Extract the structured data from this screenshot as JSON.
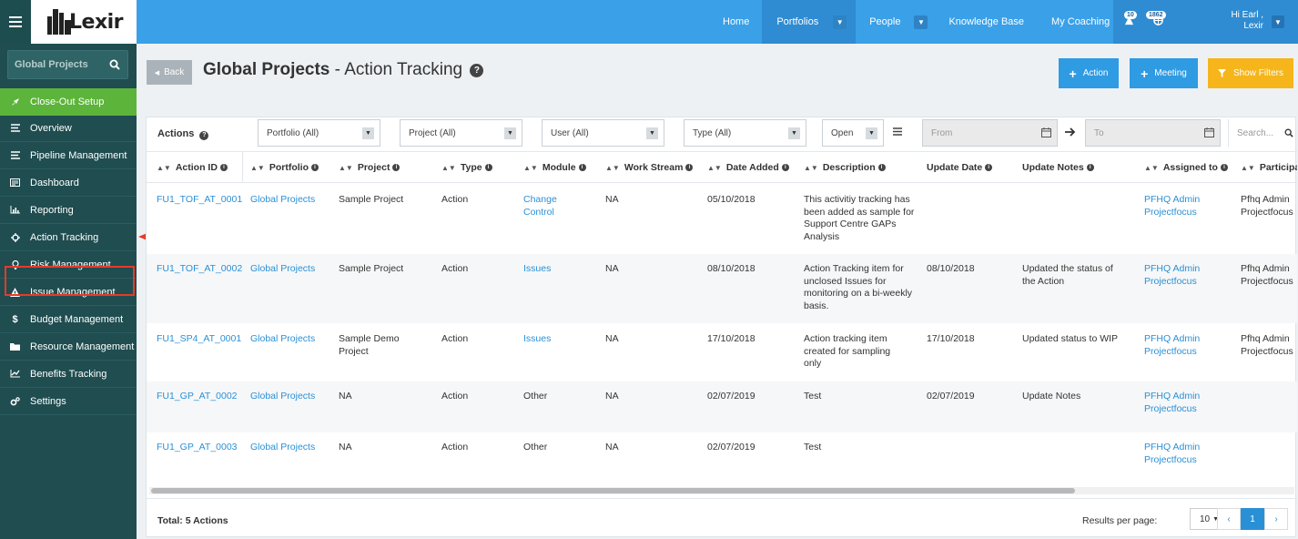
{
  "app": {
    "logo_text": "Lexir"
  },
  "topnav": {
    "home": "Home",
    "portfolios": "Portfolios",
    "people": "People",
    "knowledge_base": "Knowledge Base",
    "my_coaching": "My Coaching",
    "alerts_count": "10",
    "notifications_count": "1862",
    "greeting": "Hi Earl ,",
    "user_name": "Lexir"
  },
  "sidebar": {
    "search_label": "Global Projects",
    "items": [
      {
        "label": "Close-Out Setup",
        "icon": "rocket-icon"
      },
      {
        "label": "Overview",
        "icon": "list-icon"
      },
      {
        "label": "Pipeline Management",
        "icon": "list-icon"
      },
      {
        "label": "Dashboard",
        "icon": "dashboard-icon"
      },
      {
        "label": "Reporting",
        "icon": "bar-chart-icon"
      },
      {
        "label": "Action Tracking",
        "icon": "crosshair-icon"
      },
      {
        "label": "Risk Management",
        "icon": "lightbulb-icon"
      },
      {
        "label": "Issue Management",
        "icon": "warning-icon"
      },
      {
        "label": "Budget Management",
        "icon": "dollar-icon"
      },
      {
        "label": "Resource Management",
        "icon": "folder-icon"
      },
      {
        "label": "Benefits Tracking",
        "icon": "line-chart-icon"
      },
      {
        "label": "Settings",
        "icon": "cogs-icon"
      }
    ]
  },
  "header": {
    "back_label": "Back",
    "title_bold": "Global Projects",
    "title_rest": " - Action Tracking",
    "action_button": "Action",
    "meeting_button": "Meeting",
    "show_filters_button": "Show Filters"
  },
  "filters": {
    "actions_label": "Actions",
    "portfolio": "Portfolio (All)",
    "project": "Project (All)",
    "user": "User (All)",
    "type": "Type (All)",
    "status": "Open",
    "from_placeholder": "From",
    "to_placeholder": "To",
    "search_placeholder": "Search..."
  },
  "table": {
    "columns": [
      "Action ID",
      "Portfolio",
      "Project",
      "Type",
      "Module",
      "Work Stream",
      "Date Added",
      "Description",
      "Update Date",
      "Update Notes",
      "Assigned to",
      "Participar"
    ],
    "rows": [
      {
        "id": "FU1_TOF_AT_0001",
        "portfolio": "Global Projects",
        "project": "Sample Project",
        "type": "Action",
        "module": "Change Control",
        "work_stream": "NA",
        "date_added": "05/10/2018",
        "description": "This activitiy tracking has been added as sample for Support Centre GAPs Analysis",
        "update_date": "",
        "update_notes": "",
        "assigned_to": "PFHQ Admin Projectfocus",
        "participants": "Pfhq Admin Projectfocus"
      },
      {
        "id": "FU1_TOF_AT_0002",
        "portfolio": "Global Projects",
        "project": "Sample Project",
        "type": "Action",
        "module": "Issues",
        "work_stream": "NA",
        "date_added": "08/10/2018",
        "description": "Action Tracking item for unclosed Issues for monitoring on a bi-weekly basis.",
        "update_date": "08/10/2018",
        "update_notes": "Updated the status of the Action",
        "assigned_to": "PFHQ Admin Projectfocus",
        "participants": "Pfhq Admin Projectfocus"
      },
      {
        "id": "FU1_SP4_AT_0001",
        "portfolio": "Global Projects",
        "project": "Sample Demo Project",
        "type": "Action",
        "module": "Issues",
        "work_stream": "NA",
        "date_added": "17/10/2018",
        "description": "Action tracking item created for sampling only",
        "update_date": "17/10/2018",
        "update_notes": "Updated status to WIP",
        "assigned_to": "PFHQ Admin Projectfocus",
        "participants": "Pfhq Admin Projectfocus"
      },
      {
        "id": "FU1_GP_AT_0002",
        "portfolio": "Global Projects",
        "project": "NA",
        "type": "Action",
        "module": "Other",
        "work_stream": "NA",
        "date_added": "02/07/2019",
        "description": "Test",
        "update_date": "02/07/2019",
        "update_notes": "Update Notes",
        "assigned_to": "PFHQ Admin Projectfocus",
        "participants": ""
      },
      {
        "id": "FU1_GP_AT_0003",
        "portfolio": "Global Projects",
        "project": "NA",
        "type": "Action",
        "module": "Other",
        "work_stream": "NA",
        "date_added": "02/07/2019",
        "description": "Test",
        "update_date": "",
        "update_notes": "",
        "assigned_to": "PFHQ Admin Projectfocus",
        "participants": ""
      }
    ]
  },
  "footer": {
    "total": "Total: 5 Actions",
    "results_per_page_label": "Results per page:",
    "results_per_page": "10",
    "current_page": "1"
  },
  "colors": {
    "topbar": "#3aa0e8",
    "sidebar": "#1f4d50",
    "active_green": "#5db43b",
    "show_filters": "#f5b51b",
    "highlight_red": "#e83a28"
  }
}
